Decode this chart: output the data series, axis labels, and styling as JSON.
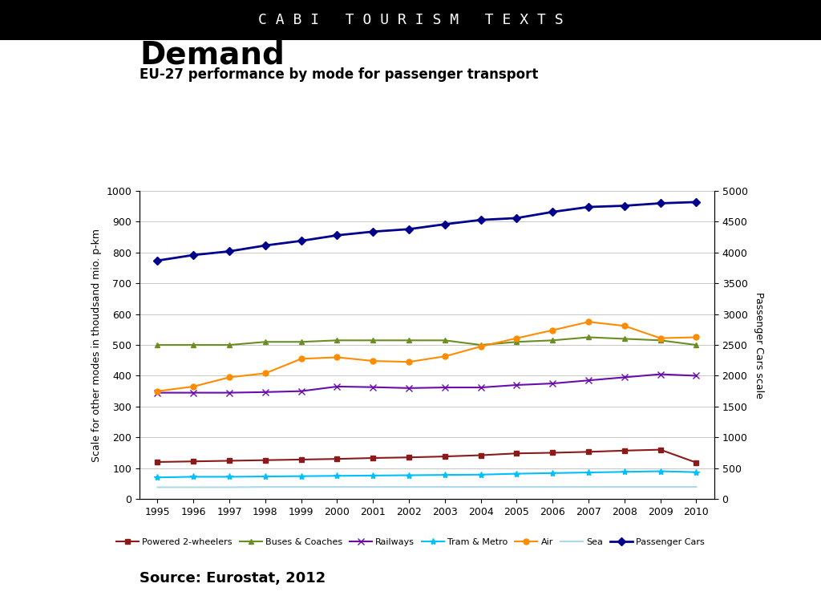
{
  "title_banner": "C A B I   T O U R I S M   T E X T S",
  "main_title": "Demand",
  "subtitle": "EU-27 performance by mode for passenger transport",
  "source": "Source: Eurostat, 2012",
  "ylabel_left": "Scale for other modes in thoudsand mio. p-km",
  "ylabel_right": "Passenger Cars scale",
  "years": [
    1995,
    1996,
    1997,
    1998,
    1999,
    2000,
    2001,
    2002,
    2003,
    2004,
    2005,
    2006,
    2007,
    2008,
    2009,
    2010
  ],
  "series": {
    "Powered 2-wheelers": {
      "values": [
        120,
        122,
        124,
        126,
        128,
        130,
        133,
        135,
        138,
        142,
        148,
        150,
        153,
        157,
        160,
        118
      ],
      "color": "#8B1A1A",
      "marker": "s",
      "linewidth": 1.5,
      "markersize": 5
    },
    "Buses & Coaches": {
      "values": [
        500,
        500,
        500,
        510,
        510,
        515,
        515,
        515,
        515,
        500,
        510,
        515,
        525,
        520,
        515,
        500
      ],
      "color": "#6B8E23",
      "marker": "^",
      "linewidth": 1.5,
      "markersize": 5
    },
    "Railways": {
      "values": [
        345,
        345,
        345,
        347,
        350,
        365,
        363,
        360,
        362,
        362,
        370,
        375,
        385,
        395,
        405,
        400
      ],
      "color": "#6A0DAD",
      "marker": "x",
      "linewidth": 1.5,
      "markersize": 6
    },
    "Tram & Metro": {
      "values": [
        70,
        72,
        72,
        73,
        74,
        75,
        76,
        77,
        78,
        79,
        82,
        84,
        86,
        88,
        90,
        87
      ],
      "color": "#00BFFF",
      "marker": "*",
      "linewidth": 1.5,
      "markersize": 6
    },
    "Air": {
      "values": [
        350,
        365,
        395,
        408,
        455,
        460,
        448,
        445,
        463,
        495,
        522,
        548,
        575,
        562,
        522,
        525
      ],
      "color": "#FF8C00",
      "marker": "o",
      "linewidth": 1.5,
      "markersize": 5
    },
    "Sea": {
      "values": [
        38,
        38,
        38,
        39,
        39,
        39,
        39,
        39,
        39,
        39,
        39,
        39,
        39,
        39,
        39,
        39
      ],
      "color": "#ADD8E6",
      "marker": "",
      "linewidth": 1.5,
      "markersize": 0
    },
    "Passenger Cars": {
      "values": [
        3870,
        3960,
        4020,
        4115,
        4190,
        4280,
        4340,
        4380,
        4460,
        4530,
        4560,
        4660,
        4740,
        4760,
        4800,
        4820
      ],
      "color": "#00008B",
      "marker": "D",
      "linewidth": 2.0,
      "markersize": 5
    }
  },
  "ylim_left": [
    0,
    1000
  ],
  "ylim_right": [
    0,
    5000
  ],
  "yticks_left": [
    0,
    100,
    200,
    300,
    400,
    500,
    600,
    700,
    800,
    900,
    1000
  ],
  "yticks_right": [
    0,
    500,
    1000,
    1500,
    2000,
    2500,
    3000,
    3500,
    4000,
    4500,
    5000
  ],
  "background_color": "#ffffff",
  "banner_color": "#000000",
  "banner_text_color": "#ffffff"
}
